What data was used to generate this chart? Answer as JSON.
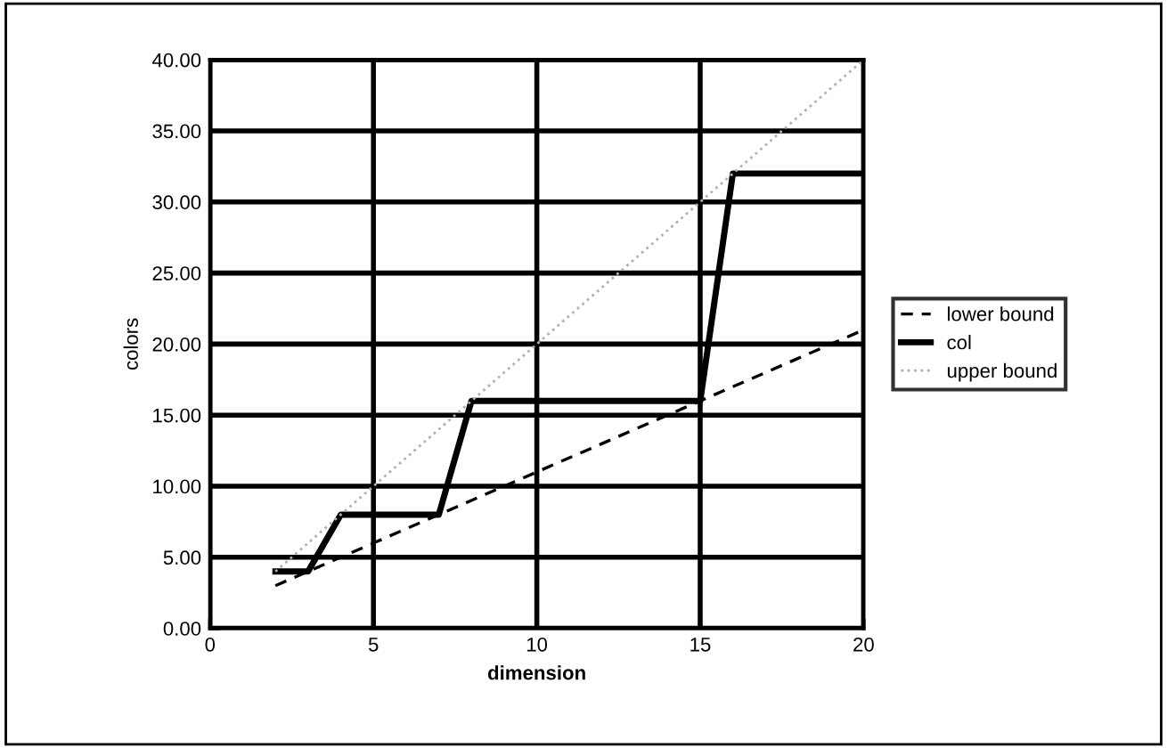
{
  "chart_data": {
    "type": "line",
    "xlabel": "dimension",
    "ylabel": "colors",
    "x": [
      2,
      3,
      4,
      5,
      6,
      7,
      8,
      9,
      10,
      11,
      12,
      13,
      14,
      15,
      16,
      17,
      18,
      19,
      20
    ],
    "series": [
      {
        "name": "lower bound",
        "color": "#000000",
        "line_style": "dashed",
        "values": [
          3,
          4,
          5,
          6,
          7,
          8,
          9,
          10,
          11,
          12,
          13,
          14,
          15,
          16,
          17,
          18,
          19,
          20,
          21
        ]
      },
      {
        "name": "col",
        "color": "#000000",
        "line_style": "solid",
        "values": [
          4,
          4,
          8,
          8,
          8,
          8,
          16,
          16,
          16,
          16,
          16,
          16,
          16,
          16,
          32,
          32,
          32,
          32,
          32
        ]
      },
      {
        "name": "upper bound",
        "color": "#b0b0b0",
        "line_style": "dotted",
        "values": [
          4,
          6,
          8,
          10,
          12,
          14,
          16,
          18,
          20,
          22,
          24,
          26,
          28,
          30,
          32,
          34,
          36,
          38,
          40
        ]
      }
    ],
    "xlim": [
      0,
      20
    ],
    "xticks": [
      0,
      5,
      10,
      15,
      20
    ],
    "ylim": [
      0,
      40
    ],
    "yticks": [
      {
        "value": 0,
        "label": "0.00"
      },
      {
        "value": 5,
        "label": "5.00"
      },
      {
        "value": 10,
        "label": "10.00"
      },
      {
        "value": 15,
        "label": "15.00"
      },
      {
        "value": 20,
        "label": "20.00"
      },
      {
        "value": 25,
        "label": "25.00"
      },
      {
        "value": 30,
        "label": "30.00"
      },
      {
        "value": 35,
        "label": "35.00"
      },
      {
        "value": 40,
        "label": "40.00"
      }
    ],
    "grid": true,
    "legend": "right",
    "marker": "none"
  }
}
